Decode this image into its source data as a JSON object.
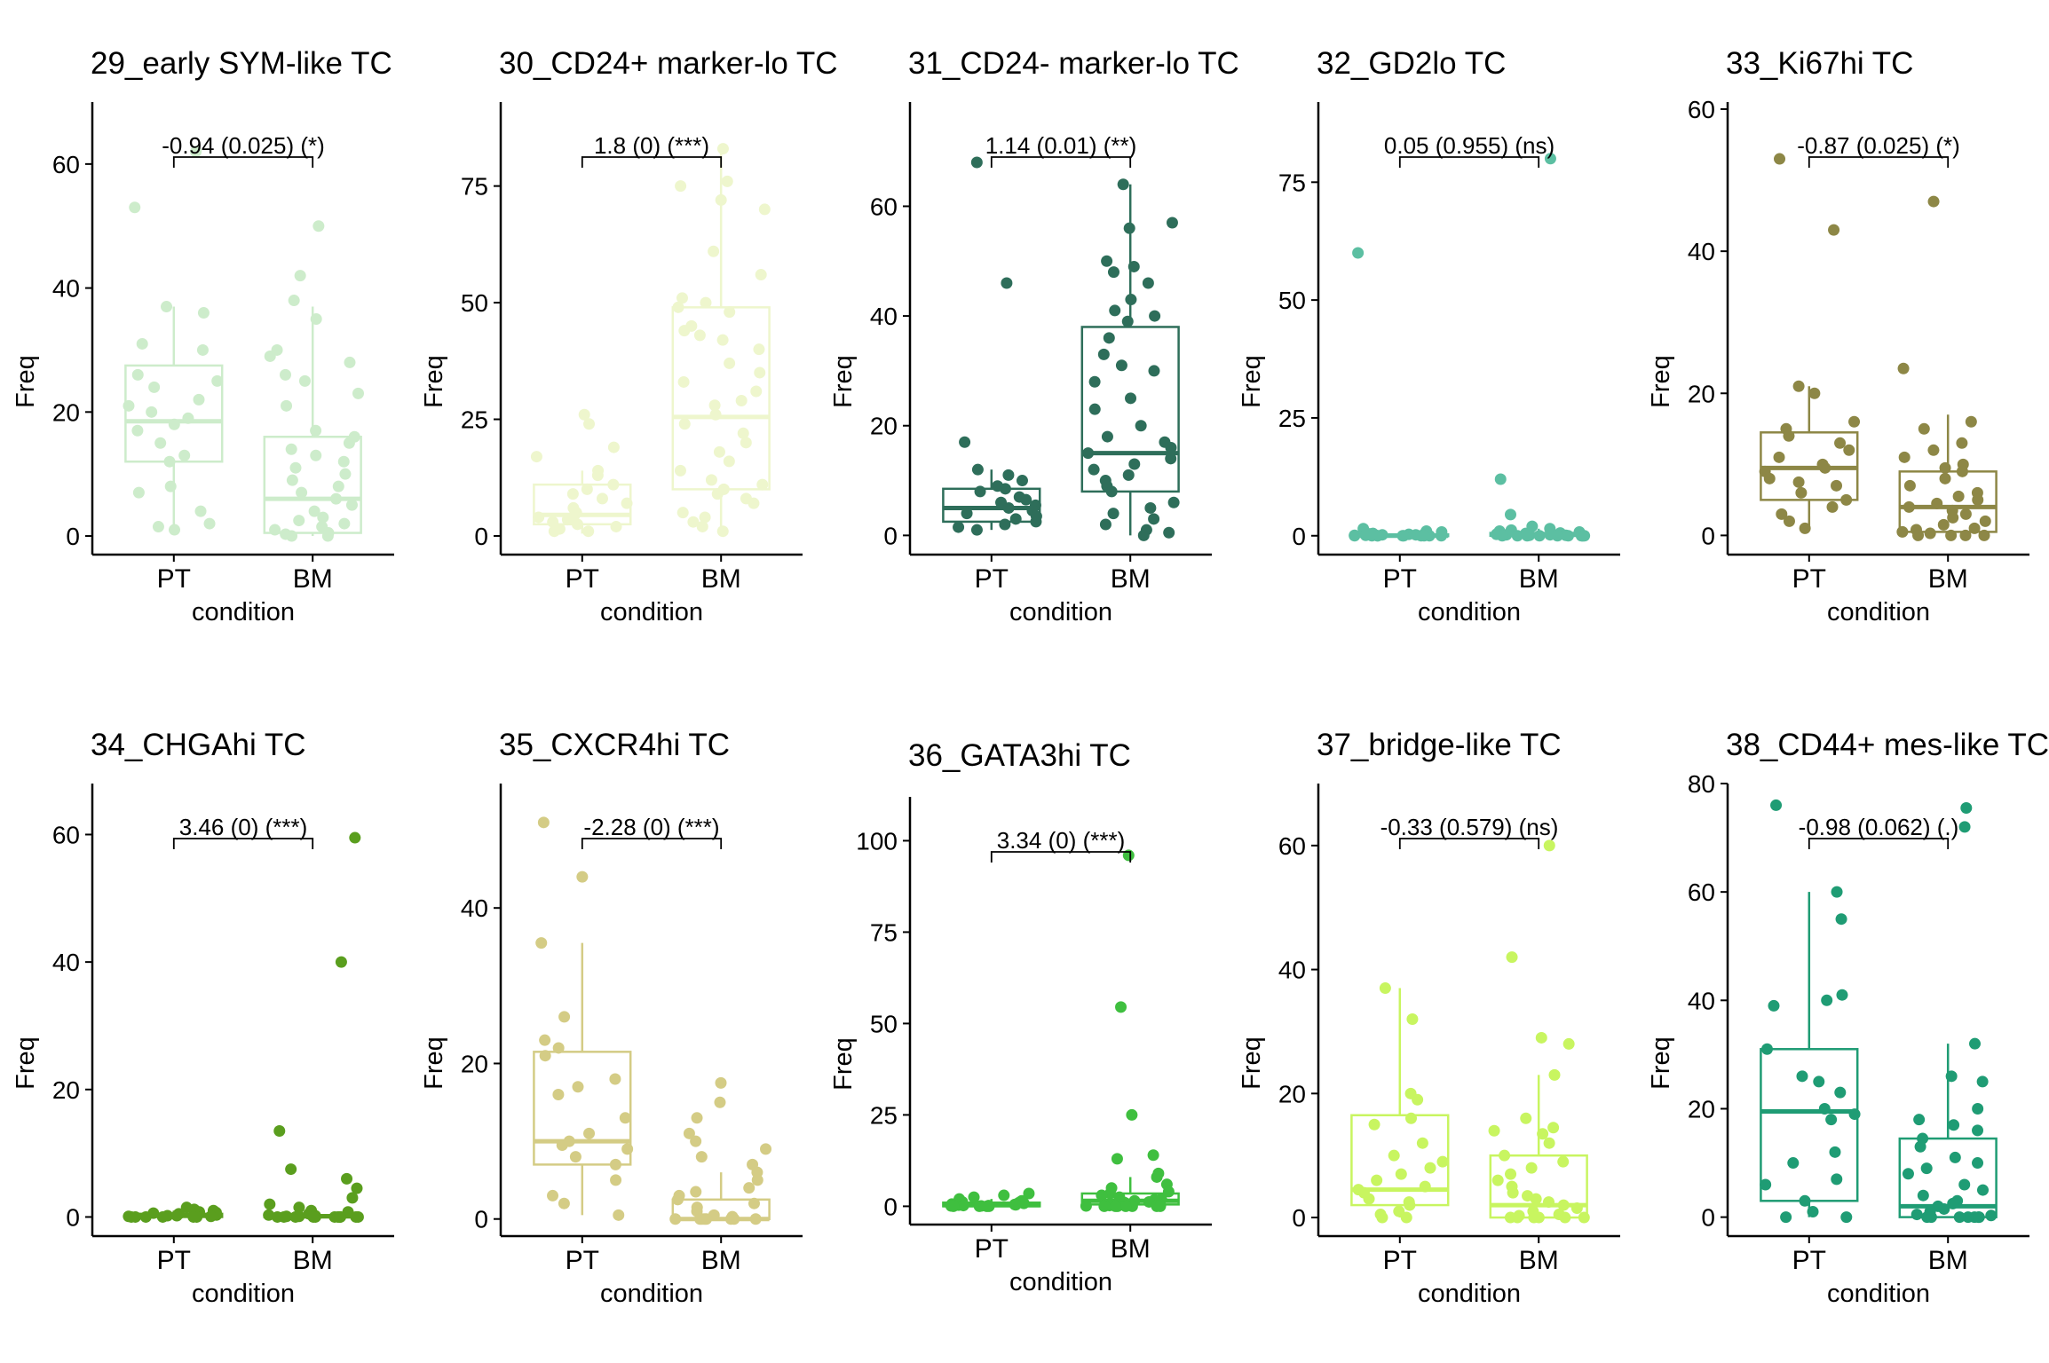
{
  "chart_data": [
    {
      "type": "box",
      "title": "29_early SYM-like TC",
      "xlabel": "condition",
      "ylabel": "Freq",
      "categories": [
        "PT",
        "BM"
      ],
      "ylim": [
        -3,
        70
      ],
      "yticks": [
        0,
        20,
        40,
        60
      ],
      "color": "#cdeccb",
      "annotation": "-0.94 (0.025) (*)",
      "boxes": [
        {
          "q1": 12,
          "median": 18.5,
          "q3": 27.5,
          "whisker_low": 1,
          "whisker_high": 37
        },
        {
          "q1": 0.5,
          "median": 6,
          "q3": 16,
          "whisker_low": 0,
          "whisker_high": 37
        }
      ],
      "points": [
        [
          62,
          53,
          37,
          36,
          31,
          30,
          26,
          25,
          24,
          22,
          21,
          20,
          19,
          18,
          17,
          15,
          13,
          12,
          8,
          7,
          4,
          2,
          1.5,
          1
        ],
        [
          50,
          42,
          38,
          35,
          30,
          29,
          28,
          26,
          25,
          23,
          21,
          17,
          16,
          15,
          14,
          13,
          12,
          11,
          10,
          9,
          8,
          7,
          6,
          5,
          4,
          3,
          2.5,
          2,
          1.5,
          1,
          0.5,
          0.3,
          0,
          0
        ]
      ]
    },
    {
      "type": "box",
      "title": "30_CD24+ marker-lo TC",
      "xlabel": "condition",
      "ylabel": "Freq",
      "categories": [
        "PT",
        "BM"
      ],
      "ylim": [
        -4,
        93
      ],
      "yticks": [
        0,
        25,
        50,
        75
      ],
      "color": "#eef6cd",
      "annotation": "1.8 (0) (***)",
      "boxes": [
        {
          "q1": 2.5,
          "median": 4.5,
          "q3": 11,
          "whisker_low": 0.5,
          "whisker_high": 14
        },
        {
          "q1": 10,
          "median": 25.5,
          "q3": 49,
          "whisker_low": 1,
          "whisker_high": 83
        }
      ],
      "points": [
        [
          26,
          24,
          19,
          17,
          14,
          13,
          11,
          10,
          9,
          8,
          7,
          6,
          5,
          4.5,
          4,
          3.5,
          3,
          2.5,
          2,
          1.5,
          1,
          1
        ],
        [
          83,
          76,
          75,
          72,
          70,
          61,
          56,
          51,
          50,
          49,
          48,
          45,
          44,
          43,
          42,
          40,
          37,
          35,
          33,
          31,
          29,
          28,
          26,
          24,
          22,
          20,
          18,
          16,
          14,
          12,
          11,
          10,
          9,
          8,
          7,
          5,
          4,
          3,
          2,
          1
        ]
      ]
    },
    {
      "type": "box",
      "title": "31_CD24- marker-lo TC",
      "xlabel": "condition",
      "ylabel": "Freq",
      "categories": [
        "PT",
        "BM"
      ],
      "ylim": [
        -3.5,
        79
      ],
      "yticks": [
        0,
        20,
        40,
        60
      ],
      "color": "#2e6e5a",
      "annotation": "1.14 (0.01) (**)",
      "boxes": [
        {
          "q1": 2.5,
          "median": 5,
          "q3": 8.5,
          "whisker_low": 1,
          "whisker_high": 12
        },
        {
          "q1": 8,
          "median": 15,
          "q3": 38,
          "whisker_low": 0,
          "whisker_high": 64
        }
      ],
      "points": [
        [
          68,
          46,
          17,
          12,
          11,
          10,
          9,
          8.5,
          8,
          7,
          6.5,
          6,
          5.5,
          5,
          4.5,
          4,
          3.5,
          3,
          2.5,
          2,
          1.5,
          1
        ],
        [
          64,
          57,
          56,
          50,
          49,
          48,
          46,
          43,
          41,
          40,
          39,
          36,
          33,
          31,
          30,
          28,
          25,
          23,
          20,
          18,
          17,
          16,
          15,
          14,
          13,
          12,
          11,
          10,
          9,
          8,
          6,
          5,
          4,
          3,
          2,
          1,
          0.5,
          0
        ]
      ]
    },
    {
      "type": "box",
      "title": "32_GD2lo TC",
      "xlabel": "condition",
      "ylabel": "Freq",
      "categories": [
        "PT",
        "BM"
      ],
      "ylim": [
        -4,
        92
      ],
      "yticks": [
        0,
        25,
        50,
        75
      ],
      "color": "#5cbfa2",
      "annotation": "0.05 (0.955) (ns)",
      "boxes": [
        {
          "q1": 0,
          "median": 0,
          "q3": 0.3,
          "whisker_low": 0,
          "whisker_high": 0.8
        },
        {
          "q1": 0,
          "median": 0.2,
          "q3": 0.6,
          "whisker_low": 0,
          "whisker_high": 1.5
        }
      ],
      "points": [
        [
          60,
          1.5,
          1,
          0.8,
          0.6,
          0.5,
          0.4,
          0.3,
          0.2,
          0.2,
          0.1,
          0.1,
          0,
          0,
          0,
          0,
          0,
          0,
          0,
          0,
          0,
          0
        ],
        [
          80,
          12,
          4.5,
          2,
          1.5,
          1.2,
          1,
          0.8,
          0.6,
          0.5,
          0.4,
          0.3,
          0.2,
          0.2,
          0.1,
          0.1,
          0,
          0,
          0,
          0,
          0,
          0,
          0,
          0,
          0,
          0
        ]
      ]
    },
    {
      "type": "box",
      "title": "33_Ki67hi TC",
      "xlabel": "condition",
      "ylabel": "Freq",
      "categories": [
        "PT",
        "BM"
      ],
      "ylim": [
        -2.7,
        61
      ],
      "yticks": [
        0,
        20,
        40,
        60
      ],
      "color": "#8d8746",
      "annotation": "-0.87 (0.025) (*)",
      "boxes": [
        {
          "q1": 5,
          "median": 9.5,
          "q3": 14.5,
          "whisker_low": 1,
          "whisker_high": 21
        },
        {
          "q1": 0.5,
          "median": 4,
          "q3": 9,
          "whisker_low": 0,
          "whisker_high": 17
        }
      ],
      "points": [
        [
          53,
          43,
          21,
          20,
          16,
          15,
          14,
          13,
          12,
          11,
          10,
          9.5,
          9,
          8,
          7.5,
          7,
          6,
          5,
          4,
          3,
          2,
          1
        ],
        [
          47,
          23.5,
          16,
          15,
          13,
          12,
          11,
          10,
          9.5,
          9,
          8,
          7,
          6,
          5.5,
          5,
          4.5,
          4,
          3.5,
          3,
          2.5,
          2,
          1.5,
          1,
          0.8,
          0.5,
          0.3,
          0,
          0,
          0,
          0
        ]
      ]
    },
    {
      "type": "box",
      "title": "34_CHGAhi TC",
      "xlabel": "condition",
      "ylabel": "Freq",
      "categories": [
        "PT",
        "BM"
      ],
      "ylim": [
        -3,
        68
      ],
      "yticks": [
        0,
        20,
        40,
        60
      ],
      "color": "#5a9e1e",
      "annotation": "3.46 (0) (***)",
      "boxes": [
        {
          "q1": 0,
          "median": 0.2,
          "q3": 0.5,
          "whisker_low": 0,
          "whisker_high": 1
        },
        {
          "q1": 0,
          "median": 0.1,
          "q3": 0.3,
          "whisker_low": 0,
          "whisker_high": 0.8
        }
      ],
      "points": [
        [
          1.5,
          1.2,
          1,
          0.9,
          0.8,
          0.7,
          0.6,
          0.5,
          0.4,
          0.3,
          0.2,
          0.2,
          0.1,
          0.1,
          0,
          0,
          0,
          0,
          0,
          0
        ],
        [
          59.5,
          40,
          13.5,
          7.5,
          6,
          4.5,
          3,
          2,
          1.5,
          1,
          0.8,
          0.5,
          0.3,
          0.2,
          0.1,
          0.1,
          0,
          0,
          0,
          0,
          0,
          0,
          0,
          0,
          0,
          0,
          0,
          0
        ]
      ]
    },
    {
      "type": "box",
      "title": "35_CXCR4hi TC",
      "xlabel": "condition",
      "ylabel": "Freq",
      "categories": [
        "PT",
        "BM"
      ],
      "ylim": [
        -2.2,
        56
      ],
      "yticks": [
        0,
        20,
        40
      ],
      "color": "#d4cc85",
      "annotation": "-2.28 (0) (***)",
      "boxes": [
        {
          "q1": 7,
          "median": 10,
          "q3": 21.5,
          "whisker_low": 0.5,
          "whisker_high": 35.5
        },
        {
          "q1": 0,
          "median": 0,
          "q3": 2.5,
          "whisker_low": 0,
          "whisker_high": 6
        }
      ],
      "points": [
        [
          51,
          44,
          35.5,
          26,
          23,
          22,
          21,
          18,
          17,
          16,
          13,
          11,
          10,
          9.5,
          9,
          8,
          7,
          5,
          3,
          2,
          0.5
        ],
        [
          17.5,
          15,
          13,
          11,
          10,
          9,
          8,
          7,
          6,
          5,
          4,
          3.5,
          3,
          2.5,
          2,
          1.5,
          1,
          0.5,
          0.3,
          0,
          0,
          0,
          0,
          0,
          0,
          0,
          0
        ]
      ]
    },
    {
      "type": "box",
      "title": "36_GATA3hi TC",
      "xlabel": "condition",
      "ylabel": "Freq",
      "categories": [
        "PT",
        "BM"
      ],
      "ylim": [
        -5,
        112
      ],
      "yticks": [
        0,
        25,
        50,
        75,
        100
      ],
      "color": "#3fbf3f",
      "annotation": "3.34 (0) (***)",
      "boxes": [
        {
          "q1": 0,
          "median": 0.3,
          "q3": 1,
          "whisker_low": 0,
          "whisker_high": 2
        },
        {
          "q1": 0.5,
          "median": 1.5,
          "q3": 3.5,
          "whisker_low": 0,
          "whisker_high": 8
        }
      ],
      "points": [
        [
          3.5,
          3,
          2.5,
          2,
          1.5,
          1.2,
          1,
          0.8,
          0.6,
          0.5,
          0.4,
          0.3,
          0.2,
          0.2,
          0.1,
          0.1,
          0,
          0,
          0,
          0
        ],
        [
          96,
          54.5,
          25,
          14,
          13,
          9,
          8,
          6,
          5,
          4,
          3.5,
          3,
          2.5,
          2,
          1.8,
          1.5,
          1.2,
          1,
          0.8,
          0.5,
          0.3,
          0.2,
          0.1,
          0,
          0,
          0,
          0,
          0,
          0,
          0
        ]
      ]
    },
    {
      "type": "box",
      "title": "37_bridge-like TC",
      "xlabel": "condition",
      "ylabel": "Freq",
      "categories": [
        "PT",
        "BM"
      ],
      "ylim": [
        -3,
        70
      ],
      "yticks": [
        0,
        20,
        40,
        60
      ],
      "color": "#c8f560",
      "annotation": "-0.33 (0.579) (ns)",
      "boxes": [
        {
          "q1": 2,
          "median": 4.5,
          "q3": 16.5,
          "whisker_low": 0,
          "whisker_high": 37
        },
        {
          "q1": 0,
          "median": 2,
          "q3": 10,
          "whisker_low": 0,
          "whisker_high": 23
        }
      ],
      "points": [
        [
          37,
          32,
          20,
          19,
          16,
          15,
          12,
          10,
          9,
          8,
          7,
          6,
          5,
          4.5,
          4,
          3,
          2.5,
          2,
          1,
          0.5,
          0,
          0
        ],
        [
          60,
          42,
          29,
          28,
          23,
          16,
          14.5,
          14,
          13.5,
          12,
          10,
          9,
          8,
          7,
          6,
          5,
          4,
          3.5,
          3,
          2.5,
          2,
          1.5,
          1,
          0.5,
          0.3,
          0,
          0,
          0,
          0,
          0,
          0
        ]
      ]
    },
    {
      "type": "box",
      "title": "38_CD44+ mes-like TC",
      "xlabel": "condition",
      "ylabel": "Freq",
      "categories": [
        "PT",
        "BM"
      ],
      "ylim": [
        -3.5,
        80
      ],
      "yticks": [
        0,
        20,
        40,
        60,
        80
      ],
      "color": "#1f9c74",
      "annotation": "-0.98 (0.062) (.)",
      "boxes": [
        {
          "q1": 3,
          "median": 19.5,
          "q3": 31,
          "whisker_low": 0,
          "whisker_high": 60
        },
        {
          "q1": 0,
          "median": 2,
          "q3": 14.5,
          "whisker_low": 0,
          "whisker_high": 32
        }
      ],
      "points": [
        [
          76,
          60,
          55,
          41,
          40,
          39,
          31,
          26,
          25,
          23,
          20,
          19,
          18,
          12,
          10,
          7,
          6,
          3,
          1,
          0,
          0
        ],
        [
          75.5,
          72,
          32,
          26,
          25,
          20,
          18,
          17,
          16,
          14.5,
          13,
          11,
          10,
          9,
          8,
          6,
          5,
          4,
          3,
          2.5,
          2,
          1.5,
          1,
          0.5,
          0.3,
          0,
          0,
          0,
          0,
          0,
          0,
          0
        ]
      ]
    }
  ]
}
